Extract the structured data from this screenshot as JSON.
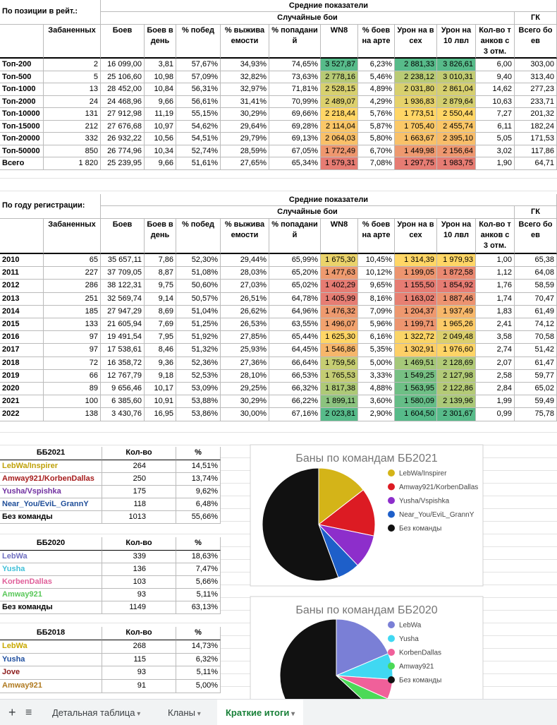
{
  "table_top": {
    "corner": "По позиции в рейт.:",
    "group": "Средние показатели",
    "subgroup": "Случайные бои",
    "gk": "ГК",
    "columns": [
      "Забаненных",
      "Боев",
      "Боев в день",
      "% побед",
      "% выживаемости",
      "% попаданий",
      "WN8",
      "% боев на арте",
      "Урон на всех",
      "Урон на 10 лвл",
      "Кол-во танков с 3 отм.",
      "Всего боев"
    ],
    "rows": [
      [
        "Топ-200",
        "2",
        "16 099,00",
        "3,81",
        "57,67%",
        "34,93%",
        "74,65%",
        "3 527,87",
        "6,23%",
        "2 881,33",
        "3 826,61",
        "6,00",
        "303,00"
      ],
      [
        "Топ-500",
        "5",
        "25 106,60",
        "10,98",
        "57,09%",
        "32,82%",
        "73,63%",
        "2 778,16",
        "5,46%",
        "2 238,12",
        "3 010,31",
        "9,40",
        "313,40"
      ],
      [
        "Топ-1000",
        "13",
        "28 452,00",
        "10,84",
        "56,31%",
        "32,97%",
        "71,81%",
        "2 528,15",
        "4,89%",
        "2 031,80",
        "2 861,04",
        "14,62",
        "277,23"
      ],
      [
        "Топ-2000",
        "24",
        "24 468,96",
        "9,66",
        "56,61%",
        "31,41%",
        "70,99%",
        "2 489,07",
        "4,29%",
        "1 936,83",
        "2 879,64",
        "10,63",
        "233,71"
      ],
      [
        "Топ-10000",
        "131",
        "27 912,98",
        "11,19",
        "55,15%",
        "30,29%",
        "69,66%",
        "2 218,44",
        "5,76%",
        "1 773,51",
        "2 550,44",
        "7,27",
        "201,32"
      ],
      [
        "Топ-15000",
        "212",
        "27 676,68",
        "10,97",
        "54,62%",
        "29,64%",
        "69,28%",
        "2 114,04",
        "5,87%",
        "1 705,40",
        "2 455,74",
        "6,11",
        "182,24"
      ],
      [
        "Топ-20000",
        "332",
        "26 932,22",
        "10,56",
        "54,51%",
        "29,79%",
        "69,13%",
        "2 064,03",
        "5,80%",
        "1 663,67",
        "2 395,10",
        "5,05",
        "171,53"
      ],
      [
        "Топ-50000",
        "850",
        "26 774,96",
        "10,34",
        "52,74%",
        "28,59%",
        "67,05%",
        "1 772,49",
        "6,70%",
        "1 449,98",
        "2 156,64",
        "3,02",
        "117,86"
      ],
      [
        "Всего",
        "1 820",
        "25 239,95",
        "9,66",
        "51,61%",
        "27,65%",
        "65,34%",
        "1 579,31",
        "7,08%",
        "1 297,75",
        "1 983,75",
        "1,90",
        "64,71"
      ]
    ]
  },
  "table_year": {
    "corner": "По году регистрации:",
    "group": "Средние показатели",
    "subgroup": "Случайные бои",
    "gk": "ГК",
    "columns": [
      "Забаненных",
      "Боев",
      "Боев в день",
      "% побед",
      "% выживаемости",
      "% попаданий",
      "WN8",
      "% боев на арте",
      "Урон на всех",
      "Урон на 10 лвл",
      "Кол-во танков с 3 отм.",
      "Всего боев"
    ],
    "rows": [
      [
        "2010",
        "65",
        "35 657,11",
        "7,86",
        "52,30%",
        "29,44%",
        "65,99%",
        "1 675,30",
        "10,45%",
        "1 314,39",
        "1 979,93",
        "1,00",
        "65,38"
      ],
      [
        "2011",
        "227",
        "37 709,05",
        "8,87",
        "51,08%",
        "28,03%",
        "65,20%",
        "1 477,63",
        "10,12%",
        "1 199,05",
        "1 872,58",
        "1,12",
        "64,08"
      ],
      [
        "2012",
        "286",
        "38 122,31",
        "9,75",
        "50,60%",
        "27,03%",
        "65,02%",
        "1 402,29",
        "9,65%",
        "1 155,50",
        "1 854,92",
        "1,76",
        "58,59"
      ],
      [
        "2013",
        "251",
        "32 569,74",
        "9,14",
        "50,57%",
        "26,51%",
        "64,78%",
        "1 405,99",
        "8,16%",
        "1 163,02",
        "1 887,46",
        "1,74",
        "70,47"
      ],
      [
        "2014",
        "185",
        "27 947,29",
        "8,69",
        "51,04%",
        "26,62%",
        "64,96%",
        "1 476,32",
        "7,09%",
        "1 204,37",
        "1 937,49",
        "1,83",
        "61,49"
      ],
      [
        "2015",
        "133",
        "21 605,94",
        "7,69",
        "51,25%",
        "26,53%",
        "63,55%",
        "1 496,07",
        "5,96%",
        "1 199,71",
        "1 965,26",
        "2,41",
        "74,12"
      ],
      [
        "2016",
        "97",
        "19 491,54",
        "7,95",
        "51,92%",
        "27,85%",
        "65,44%",
        "1 625,30",
        "6,16%",
        "1 322,72",
        "2 049,48",
        "3,58",
        "70,58"
      ],
      [
        "2017",
        "97",
        "17 538,61",
        "8,46",
        "51,32%",
        "25,93%",
        "64,45%",
        "1 546,86",
        "5,35%",
        "1 302,91",
        "1 976,60",
        "2,74",
        "51,42"
      ],
      [
        "2018",
        "72",
        "16 358,72",
        "9,36",
        "52,36%",
        "27,36%",
        "66,64%",
        "1 759,56",
        "5,00%",
        "1 469,51",
        "2 128,69",
        "2,07",
        "61,47"
      ],
      [
        "2019",
        "66",
        "12 767,79",
        "9,18",
        "52,53%",
        "28,10%",
        "66,53%",
        "1 765,53",
        "3,33%",
        "1 549,25",
        "2 127,98",
        "2,58",
        "59,77"
      ],
      [
        "2020",
        "89",
        "9 656,46",
        "10,17",
        "53,09%",
        "29,25%",
        "66,32%",
        "1 817,38",
        "4,88%",
        "1 563,95",
        "2 122,86",
        "2,84",
        "65,02"
      ],
      [
        "2021",
        "100",
        "6 385,60",
        "10,91",
        "53,88%",
        "30,29%",
        "66,22%",
        "1 899,11",
        "3,60%",
        "1 580,09",
        "2 139,96",
        "1,99",
        "59,49"
      ],
      [
        "2022",
        "138",
        "3 430,76",
        "16,95",
        "53,86%",
        "30,00%",
        "67,16%",
        "2 023,81",
        "2,90%",
        "1 604,50",
        "2 301,67",
        "0,99",
        "75,78"
      ]
    ]
  },
  "color_scale": {
    "columns": [
      7,
      9,
      10
    ],
    "min": "#e67c73",
    "mid": "#ffd666",
    "max": "#57bb8a"
  },
  "bans": [
    {
      "title": "ББ2021",
      "count_header": "Кол-во",
      "pct_header": "%",
      "rows": [
        {
          "name": "LebWa/Inspirer",
          "color": "#bfa10a",
          "count": 264,
          "pct": "14,51%"
        },
        {
          "name": "Amway921/KorbenDallas",
          "color": "#a61c1c",
          "count": 250,
          "pct": "13,74%"
        },
        {
          "name": "Yusha/Vspishka",
          "color": "#7030a0",
          "count": 175,
          "pct": "9,62%"
        },
        {
          "name": "Near_You/EviL_GrannY",
          "color": "#1f4e99",
          "count": 118,
          "pct": "6,48%"
        },
        {
          "name": "Без команды",
          "color": "#000000",
          "count": 1013,
          "pct": "55,66%"
        }
      ],
      "chart": {
        "type": "pie",
        "title": "Баны по командам ББ2021",
        "colors": [
          "#d4b418",
          "#dc1b23",
          "#8d2ecb",
          "#1e5fc9",
          "#111111"
        ]
      }
    },
    {
      "title": "ББ2020",
      "count_header": "Кол-во",
      "pct_header": "%",
      "rows": [
        {
          "name": "LebWa",
          "color": "#6f6fc0",
          "count": 339,
          "pct": "18,63%"
        },
        {
          "name": "Yusha",
          "color": "#40c0d8",
          "count": 136,
          "pct": "7,47%"
        },
        {
          "name": "KorbenDallas",
          "color": "#e0609a",
          "count": 103,
          "pct": "5,66%"
        },
        {
          "name": "Amway921",
          "color": "#5ac85a",
          "count": 93,
          "pct": "5,11%"
        },
        {
          "name": "Без команды",
          "color": "#000000",
          "count": 1149,
          "pct": "63,13%"
        }
      ],
      "chart": {
        "type": "pie",
        "title": "Баны по командам ББ2020",
        "colors": [
          "#7a7fd6",
          "#40d8f2",
          "#f0609a",
          "#4cd957",
          "#111111"
        ]
      }
    },
    {
      "title": "ББ2018",
      "count_header": "Кол-во",
      "pct_header": "%",
      "rows": [
        {
          "name": "LebWa",
          "color": "#c8a800",
          "count": 268,
          "pct": "14,73%"
        },
        {
          "name": "Yusha",
          "color": "#2050a0",
          "count": 115,
          "pct": "6,32%"
        },
        {
          "name": "Jove",
          "color": "#8b1a1a",
          "count": 93,
          "pct": "5,11%"
        },
        {
          "name": "Amway921",
          "color": "#b07a20",
          "count": 91,
          "pct": "5,00%"
        }
      ]
    }
  ],
  "tabs": [
    "Детальная таблица",
    "Кланы",
    "Краткие итоги"
  ],
  "active_tab": 2
}
